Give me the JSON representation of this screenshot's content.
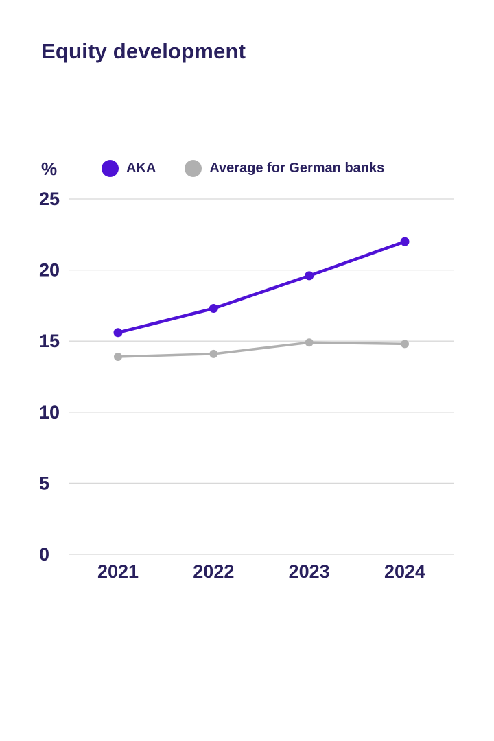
{
  "page": {
    "title": "Equity development",
    "background": "#ffffff",
    "text_color": "#29205e"
  },
  "chart_data": {
    "type": "line",
    "title": "Equity development",
    "unit_label": "%",
    "categories": [
      "2021",
      "2022",
      "2023",
      "2024"
    ],
    "series": [
      {
        "name": "AKA",
        "color": "#4f12d6",
        "values": [
          15.6,
          17.3,
          19.6,
          22.0
        ]
      },
      {
        "name": "Average for German banks",
        "color": "#b0b0b0",
        "values": [
          13.9,
          14.1,
          14.9,
          14.8
        ]
      }
    ],
    "ylim": [
      0,
      25
    ],
    "yticks": [
      0,
      5,
      10,
      15,
      20,
      25
    ],
    "grid": true,
    "grid_color": "#d8d8d8",
    "legend_position": "top"
  }
}
